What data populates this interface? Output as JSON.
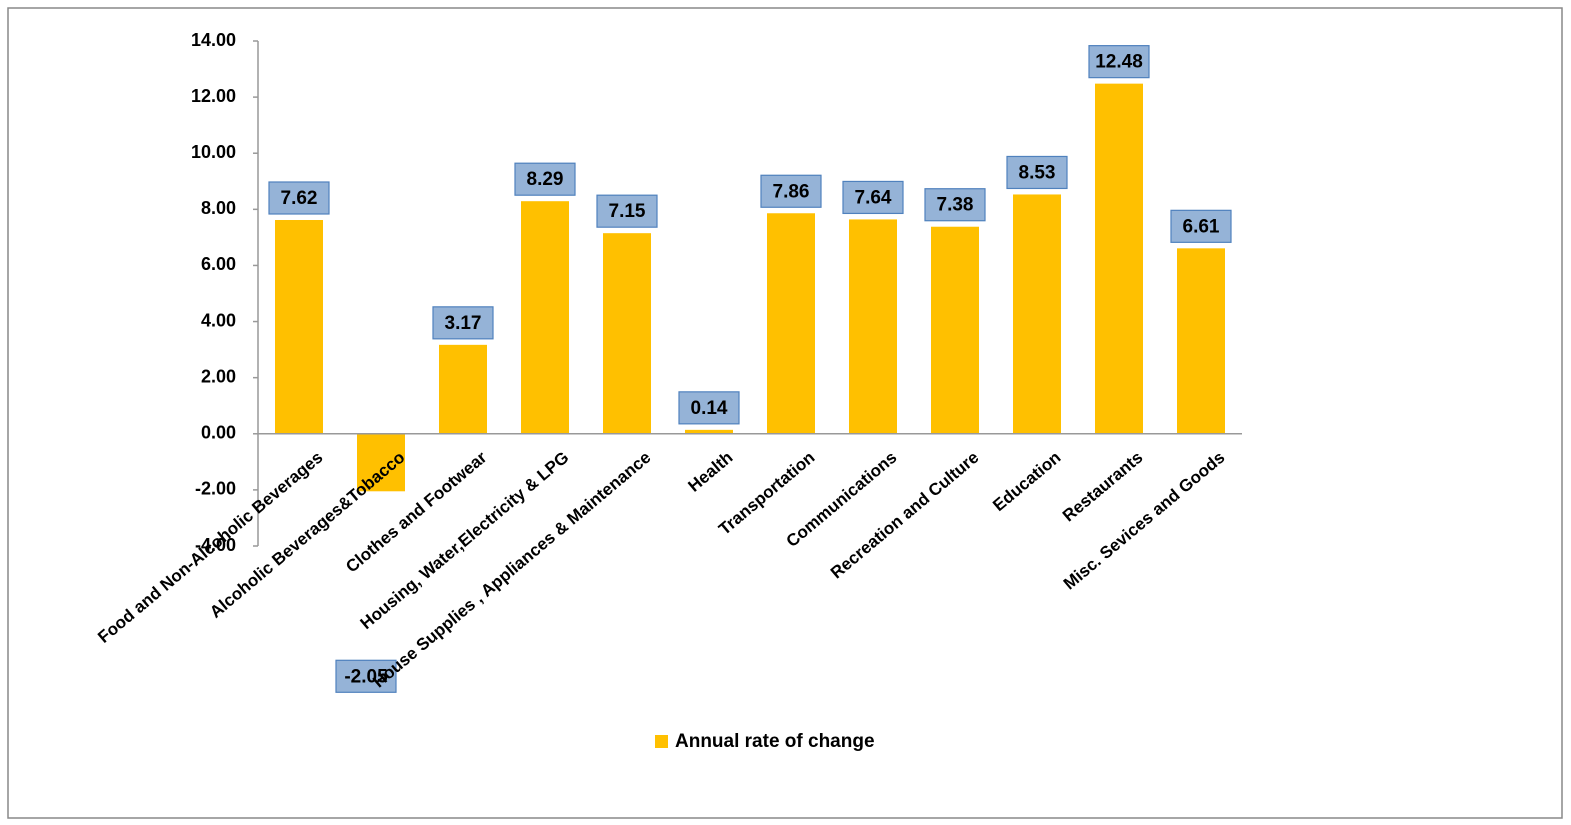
{
  "chart_data": {
    "type": "bar",
    "categories": [
      "Food and Non-Alcoholic Beverages",
      "Alcoholic Beverages&Tobacco",
      "Clothes and Footwear",
      "Housing, Water,Electricity & LPG",
      "House Supplies , Appliances & Maintenance",
      "Health",
      "Transportation",
      "Communications",
      "Recreation and Culture",
      "Education",
      "Restaurants",
      "Misc. Sevices and Goods"
    ],
    "series": [
      {
        "name": "Annual rate of change",
        "color": "#ffc000",
        "values": [
          7.62,
          -2.05,
          3.17,
          8.29,
          7.15,
          0.14,
          7.86,
          7.64,
          7.38,
          8.53,
          12.48,
          6.61
        ]
      }
    ],
    "ylim": [
      -4,
      14
    ],
    "yticks": [
      {
        "value": -4,
        "label": "-4.00"
      },
      {
        "value": -2,
        "label": "-2.00"
      },
      {
        "value": 0,
        "label": "0.00"
      },
      {
        "value": 2,
        "label": "2.00"
      },
      {
        "value": 4,
        "label": "4.00"
      },
      {
        "value": 6,
        "label": "6.00"
      },
      {
        "value": 8,
        "label": "8.00"
      },
      {
        "value": 10,
        "label": "10.00"
      },
      {
        "value": 12,
        "label": "12.00"
      },
      {
        "value": 14,
        "label": "14.00"
      }
    ],
    "grid": false,
    "legend": "bottom"
  }
}
